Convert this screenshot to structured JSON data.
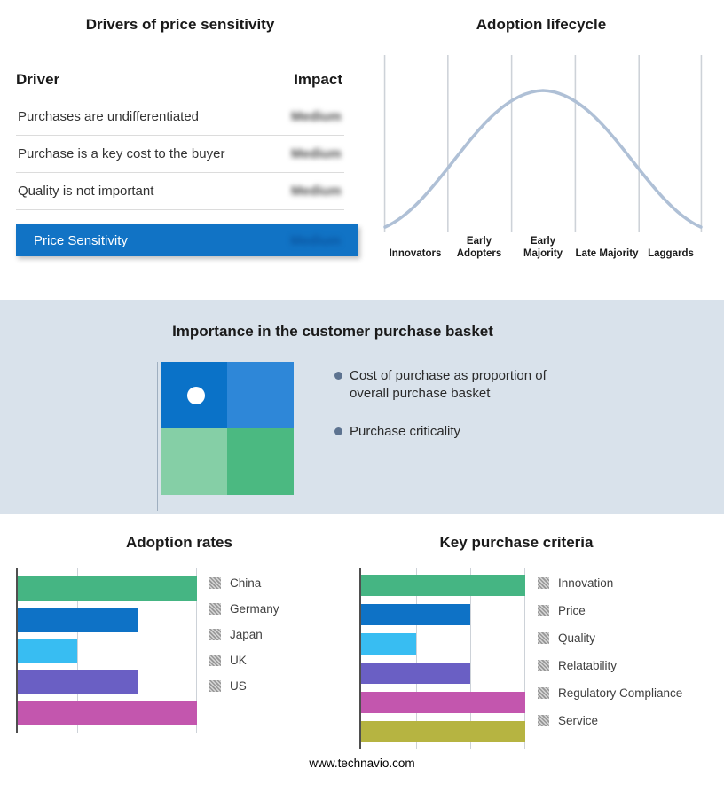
{
  "footer": {
    "url": "www.technavio.com"
  },
  "basket": {
    "title": "Importance in the customer purchase basket",
    "bullets": [
      "Cost of purchase as proportion of overall purchase basket",
      "Purchase criticality"
    ],
    "quadrant_colors": [
      "#0a72c8",
      "#2e87d8",
      "#85cfa6",
      "#4bb981"
    ],
    "dot_color": "#ffffff",
    "background": "#d9e2eb"
  },
  "chart_data": [
    {
      "id": "drivers_table",
      "type": "table",
      "title": "Drivers of price sensitivity",
      "columns": [
        "Driver",
        "Impact"
      ],
      "rows": [
        [
          "Purchases are undifferentiated",
          "Medium"
        ],
        [
          "Purchase is a key cost to the buyer",
          "Medium"
        ],
        [
          "Quality is not important",
          "Medium"
        ]
      ],
      "highlight_row": [
        "Price Sensitivity",
        "Medium"
      ],
      "highlight_color": "#1173c5",
      "note": "Impact values shown blurred/obscured in source image"
    },
    {
      "id": "adoption_lifecycle",
      "type": "line",
      "title": "Adoption lifecycle",
      "categories": [
        "Innovators",
        "Early Adopters",
        "Early Majority",
        "Late Majority",
        "Laggards"
      ],
      "description": "Bell-shaped adoption curve peaking over Early Majority",
      "curve_color": "#afc0d6",
      "grid": "vertical stage boundaries"
    },
    {
      "id": "adoption_rates",
      "type": "bar",
      "title": "Adoption rates",
      "orientation": "horizontal",
      "categories": [
        "China",
        "Germany",
        "Japan",
        "UK",
        "US"
      ],
      "values": [
        3,
        2,
        1,
        2,
        3
      ],
      "xlim": [
        0,
        3
      ],
      "colors": [
        "#45b583",
        "#0e72c6",
        "#38bdf2",
        "#6a5fc4",
        "#c356ae"
      ],
      "legend_position": "right",
      "grid": "vertical"
    },
    {
      "id": "key_purchase_criteria",
      "type": "bar",
      "title": "Key purchase criteria",
      "orientation": "horizontal",
      "categories": [
        "Innovation",
        "Price",
        "Quality",
        "Relatability",
        "Regulatory Compliance",
        "Service"
      ],
      "values": [
        3,
        2,
        1,
        2,
        3,
        3
      ],
      "xlim": [
        0,
        3
      ],
      "colors": [
        "#45b583",
        "#0e72c6",
        "#38bdf2",
        "#6a5fc4",
        "#c356ae",
        "#b6b441"
      ],
      "legend_position": "right",
      "grid": "vertical"
    }
  ]
}
